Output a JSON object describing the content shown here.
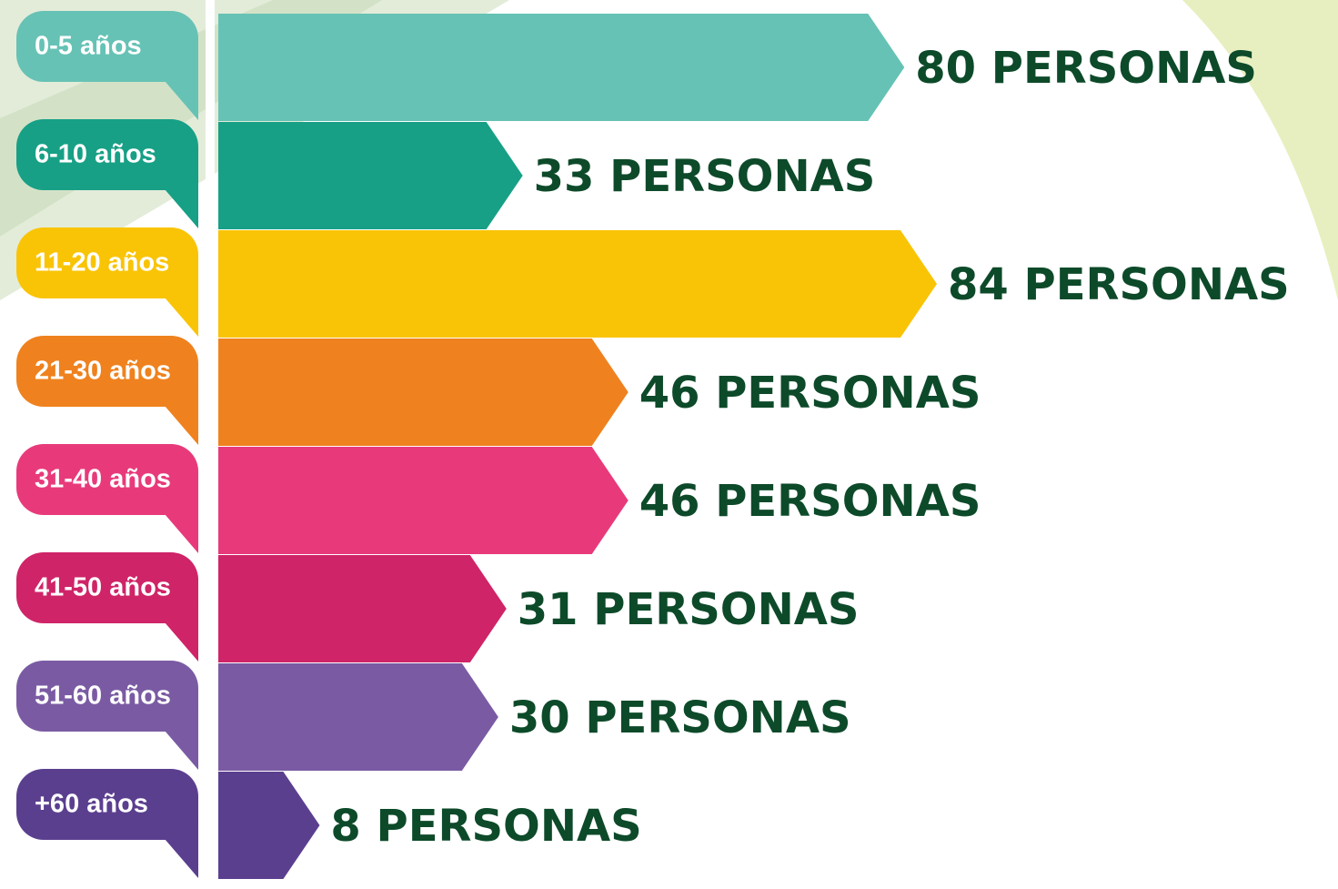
{
  "chart_data": {
    "type": "bar",
    "categories": [
      "0-5 años",
      "6-10 años",
      "11-20 años",
      "21-30 años",
      "31-40 años",
      "41-50 años",
      "51-60 años",
      "+60 años"
    ],
    "values": [
      80,
      33,
      84,
      46,
      46,
      31,
      30,
      8
    ],
    "value_labels": [
      "80 PERSONAS",
      "33 PERSONAS",
      "84 PERSONAS",
      "46 PERSONAS",
      "46 PERSONAS",
      "31 PERSONAS",
      "30 PERSONAS",
      "8 PERSONAS"
    ],
    "colors": [
      "#66c2b5",
      "#17a086",
      "#f9c406",
      "#ef821e",
      "#e83a7b",
      "#cf2468",
      "#7a5ba3",
      "#5b3f8f"
    ]
  }
}
